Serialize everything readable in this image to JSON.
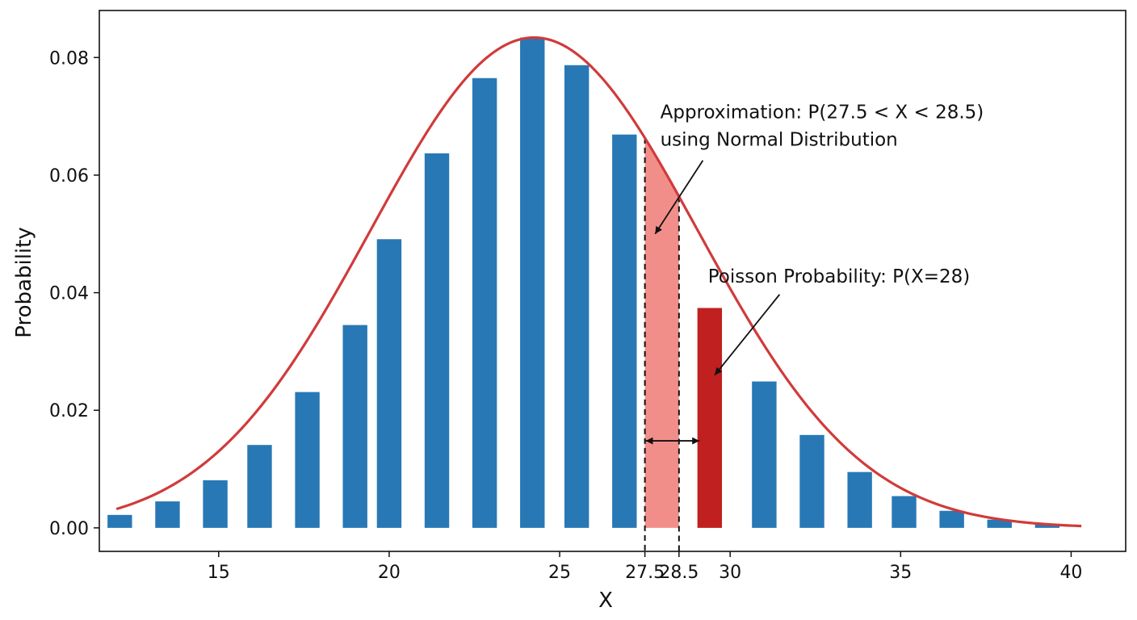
{
  "chart_data": {
    "type": "bar",
    "title": "",
    "xlabel": "X",
    "ylabel": "Probability",
    "xlim": [
      11.5,
      41.6
    ],
    "ylim": [
      -0.004,
      0.088
    ],
    "grid": false,
    "legend": "none",
    "x_ticks": [
      {
        "value": 15,
        "label": "15"
      },
      {
        "value": 20,
        "label": "20"
      },
      {
        "value": 25,
        "label": "25"
      },
      {
        "value": 27.5,
        "label": "27.5"
      },
      {
        "value": 28.5,
        "label": "28.5"
      },
      {
        "value": 30,
        "label": "30"
      },
      {
        "value": 35,
        "label": "35"
      },
      {
        "value": 40,
        "label": "40"
      }
    ],
    "y_ticks": [
      {
        "value": 0.0,
        "label": "0.00"
      },
      {
        "value": 0.02,
        "label": "0.02"
      },
      {
        "value": 0.04,
        "label": "0.04"
      },
      {
        "value": 0.06,
        "label": "0.06"
      },
      {
        "value": 0.08,
        "label": "0.08"
      }
    ],
    "bar_width": 0.72,
    "bars": [
      {
        "x": 12.1,
        "value": 0.0022
      },
      {
        "x": 13.5,
        "value": 0.0045
      },
      {
        "x": 14.9,
        "value": 0.0081
      },
      {
        "x": 16.2,
        "value": 0.0141
      },
      {
        "x": 17.6,
        "value": 0.0231
      },
      {
        "x": 19.0,
        "value": 0.0345
      },
      {
        "x": 20.0,
        "value": 0.0491
      },
      {
        "x": 21.4,
        "value": 0.0637
      },
      {
        "x": 22.8,
        "value": 0.0765
      },
      {
        "x": 24.2,
        "value": 0.0834
      },
      {
        "x": 25.5,
        "value": 0.0787
      },
      {
        "x": 26.9,
        "value": 0.0669
      },
      {
        "x": 29.4,
        "value": 0.0374,
        "highlight": true
      },
      {
        "x": 31.0,
        "value": 0.0249
      },
      {
        "x": 32.4,
        "value": 0.0158
      },
      {
        "x": 33.8,
        "value": 0.0095
      },
      {
        "x": 35.1,
        "value": 0.0054
      },
      {
        "x": 36.5,
        "value": 0.0029
      },
      {
        "x": 37.9,
        "value": 0.0014
      },
      {
        "x": 39.3,
        "value": 0.0007
      }
    ],
    "normal_curve": {
      "mean": 24.25,
      "sd": 4.8,
      "peak": 0.0834,
      "x_start": 12.0,
      "x_end": 40.3
    },
    "shaded_region": {
      "x0": 27.5,
      "x1": 28.5
    },
    "annotations": [
      {
        "id": "approx",
        "lines": [
          "Approximation: P(27.5 < X < 28.5)",
          "using Normal Distribution"
        ],
        "text_x": 27.95,
        "text_y": 0.0697,
        "arrow_from": [
          29.2,
          0.0625
        ],
        "arrow_to": [
          27.8,
          0.05
        ]
      },
      {
        "id": "poisson",
        "lines": [
          "Poisson Probability: P(X=28)"
        ],
        "text_x": 29.35,
        "text_y": 0.0417,
        "arrow_from": [
          31.45,
          0.0397
        ],
        "arrow_to": [
          29.55,
          0.026
        ]
      }
    ],
    "width_arrow": {
      "x0": 27.5,
      "x1": 29.1,
      "y": 0.0148
    },
    "colors": {
      "bar": "#2878b5",
      "highlight_bar": "#c0201f",
      "curve": "#d03b3b",
      "shade": "#f28e8a",
      "axis": "#111111"
    }
  }
}
